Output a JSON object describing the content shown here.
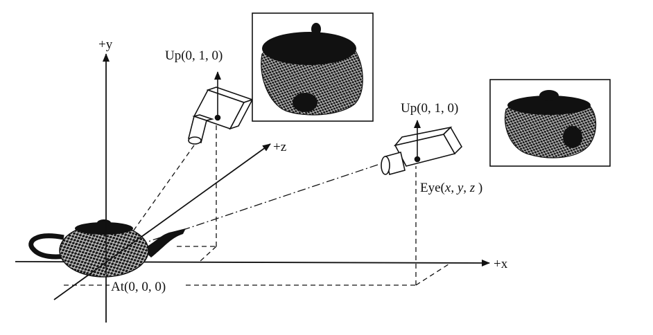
{
  "axes": {
    "x_label": "+x",
    "y_label": "+y",
    "z_label": "+z"
  },
  "camera_top": {
    "up_label": "Up(0, 1, 0)"
  },
  "camera_right": {
    "up_label": "Up(0, 1, 0)",
    "eye_label_prefix": "Eye(",
    "eye_x": "x",
    "eye_y": "y",
    "eye_z": "z",
    "eye_label_suffix": ")"
  },
  "target": {
    "at_label": "At(0, 0, 0)"
  },
  "colors": {
    "ink": "#111111",
    "mesh_dark": "#1a1a1a",
    "mesh_light": "#f2f2f2"
  }
}
